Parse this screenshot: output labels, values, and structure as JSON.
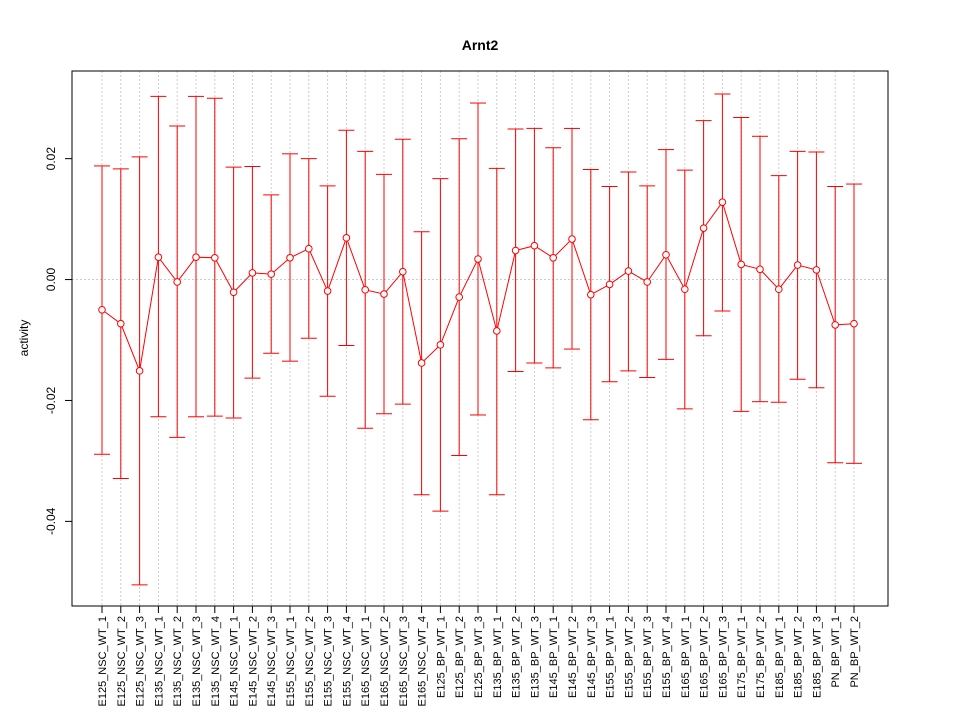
{
  "chart_data": {
    "type": "line",
    "title": "Arnt2",
    "xlabel": "",
    "ylabel": "activity",
    "ylim": [
      -0.054,
      0.0345
    ],
    "yticks": [
      -0.04,
      -0.02,
      0.0,
      0.02
    ],
    "ytick_labels": [
      "-0.04",
      "-0.02",
      "0.00",
      "0.02"
    ],
    "grid": true,
    "color": "#ff0000",
    "grid_color": "#cccccc",
    "categories": [
      "E125_NSC_WT_1",
      "E125_NSC_WT_2",
      "E125_NSC_WT_3",
      "E135_NSC_WT_1",
      "E135_NSC_WT_2",
      "E135_NSC_WT_3",
      "E135_NSC_WT_4",
      "E145_NSC_WT_1",
      "E145_NSC_WT_2",
      "E145_NSC_WT_3",
      "E155_NSC_WT_1",
      "E155_NSC_WT_2",
      "E155_NSC_WT_3",
      "E155_NSC_WT_4",
      "E165_NSC_WT_1",
      "E165_NSC_WT_2",
      "E165_NSC_WT_3",
      "E165_NSC_WT_4",
      "E125_BP_WT_1",
      "E125_BP_WT_2",
      "E125_BP_WT_3",
      "E135_BP_WT_1",
      "E135_BP_WT_2",
      "E135_BP_WT_3",
      "E145_BP_WT_1",
      "E145_BP_WT_2",
      "E145_BP_WT_3",
      "E155_BP_WT_1",
      "E155_BP_WT_2",
      "E155_BP_WT_3",
      "E155_BP_WT_4",
      "E165_BP_WT_1",
      "E165_BP_WT_2",
      "E165_BP_WT_3",
      "E175_BP_WT_1",
      "E175_BP_WT_2",
      "E185_BP_WT_1",
      "E185_BP_WT_2",
      "E185_BP_WT_3",
      "PN_BP_WT_1",
      "PN_BP_WT_2"
    ],
    "values": [
      -0.005,
      -0.0073,
      -0.0151,
      0.0037,
      -0.0004,
      0.0037,
      0.0036,
      -0.0021,
      0.0011,
      0.0009,
      0.0036,
      0.0051,
      -0.0019,
      0.0069,
      -0.0017,
      -0.0024,
      0.0013,
      -0.0138,
      -0.0108,
      -0.0029,
      0.0034,
      -0.0085,
      0.0048,
      0.0056,
      0.0036,
      0.0067,
      -0.0025,
      -0.0008,
      0.0014,
      -0.0004,
      0.0041,
      -0.0016,
      0.0085,
      0.0128,
      0.0025,
      0.0017,
      -0.0016,
      0.0024,
      0.0016,
      -0.0075,
      -0.0073
    ],
    "upper": [
      0.0188,
      0.0183,
      0.0203,
      0.0303,
      0.0254,
      0.0303,
      0.03,
      0.0186,
      0.0187,
      0.014,
      0.0208,
      0.02,
      0.0155,
      0.0247,
      0.0212,
      0.0174,
      0.0232,
      0.0079,
      0.0167,
      0.0233,
      0.0292,
      0.0184,
      0.0249,
      0.025,
      0.0218,
      0.025,
      0.0182,
      0.0154,
      0.0178,
      0.0155,
      0.0215,
      0.0181,
      0.0263,
      0.0307,
      0.0268,
      0.0237,
      0.0172,
      0.0212,
      0.0211,
      0.0154,
      0.0158
    ],
    "lower": [
      -0.0289,
      -0.0329,
      -0.0505,
      -0.0227,
      -0.0261,
      -0.0227,
      -0.0226,
      -0.0229,
      -0.0163,
      -0.0122,
      -0.0135,
      -0.0097,
      -0.0193,
      -0.0109,
      -0.0246,
      -0.0222,
      -0.0206,
      -0.0356,
      -0.0383,
      -0.0291,
      -0.0224,
      -0.0356,
      -0.0152,
      -0.0138,
      -0.0146,
      -0.0115,
      -0.0232,
      -0.0169,
      -0.0151,
      -0.0162,
      -0.0132,
      -0.0214,
      -0.0093,
      -0.0052,
      -0.0218,
      -0.0202,
      -0.0203,
      -0.0165,
      -0.0179,
      -0.0303,
      -0.0304
    ]
  }
}
